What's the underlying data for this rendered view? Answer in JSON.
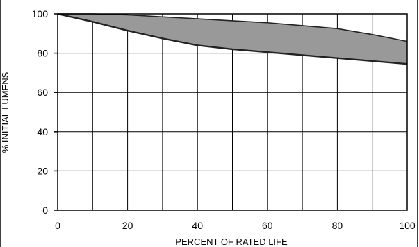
{
  "chart_data": {
    "type": "area",
    "title": "",
    "xlabel": "PERCENT OF RATED LIFE",
    "ylabel": "% INITIAL LUMENS",
    "xlim": [
      0,
      100
    ],
    "ylim": [
      0,
      100
    ],
    "x_ticks": [
      0,
      20,
      40,
      60,
      80,
      100
    ],
    "y_ticks": [
      0,
      20,
      40,
      60,
      80,
      100
    ],
    "x_tick_labels": [
      "0",
      "20",
      "40",
      "60",
      "80",
      "100"
    ],
    "y_tick_labels": [
      "0",
      "20",
      "40",
      "60",
      "80",
      "100"
    ],
    "grid": true,
    "grid_step_x": 10,
    "grid_step_y": 20,
    "band_fill_color": "#999999",
    "line_color": "#222222",
    "x": [
      0,
      10,
      20,
      30,
      40,
      50,
      60,
      70,
      80,
      90,
      100
    ],
    "series": [
      {
        "values": [
          100,
          100,
          99.5,
          98.5,
          97.5,
          96.5,
          95.5,
          94,
          92.5,
          89.5,
          86
        ]
      },
      {
        "values": [
          100,
          96,
          91.5,
          87.5,
          84,
          82,
          80.5,
          79,
          77.5,
          76,
          74.5
        ]
      }
    ]
  }
}
